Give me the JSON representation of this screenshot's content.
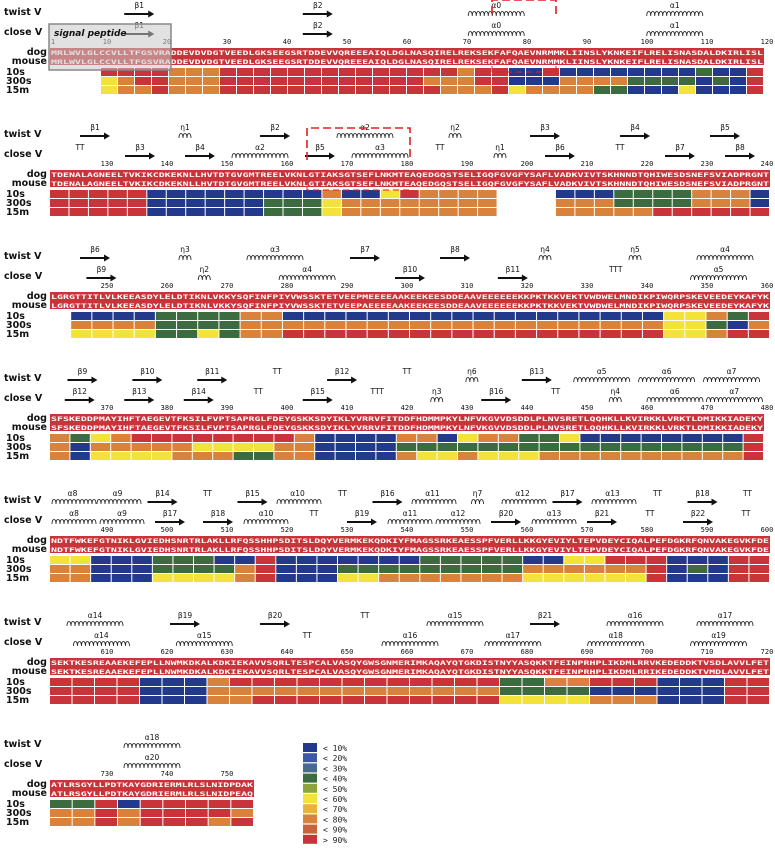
{
  "labels": {
    "twist": "twist V",
    "close": "close V",
    "dog": "dog",
    "mouse": "mouse",
    "t10s": "10s",
    "t300s": "300s",
    "t15m": "15m",
    "signal_peptide": "signal peptide"
  },
  "blocks": [
    {
      "start": 1,
      "numbers": [
        "1",
        "10",
        "20",
        "30",
        "40",
        "50",
        "60",
        "70",
        "80",
        "90",
        "100",
        "110",
        "120"
      ],
      "dog": "MRLWVLGLCCVLLTFGSVRADDEVDVDGTVEEDLGKSEEGSRTDDEVVQREEEAIQLDGLNASQIRELREKSEKFAFQAEVNRMMKLIINSLYKNKEIFLRELISNASDALDKIRLISL",
      "mouse": "MRLWVLGLCCVLLTFGSVRADDEVDVDGTVEEDLGKSEEGSRTDDEVVQREEEAIQLDGLNASQIRELREKSEKFAFQAEVNRMMKLIINSLYKNKEIFLRELISNASDALDKIRLISL",
      "twist_ss": [
        "β1",
        "β2",
        "α0",
        "α1"
      ],
      "close_ss": [
        "β1",
        "β2",
        "α0",
        "α1"
      ],
      "bars": {
        "10s": [
          "C",
          "C",
          "C",
          "R",
          "R",
          "R",
          "R",
          "O",
          "O",
          "O",
          "R",
          "R",
          "R",
          "R",
          "R",
          "R",
          "R",
          "R",
          "R",
          "R",
          "R",
          "R",
          "R",
          "R",
          "O",
          "R",
          "R",
          "B",
          "B",
          "R",
          "B",
          "B",
          "B",
          "B",
          "B",
          "B",
          "B",
          "B",
          "G",
          "B",
          "B",
          "R"
        ],
        "300s": [
          "C",
          "C",
          "C",
          "Y",
          "O",
          "R",
          "R",
          "O",
          "O",
          "O",
          "R",
          "R",
          "R",
          "R",
          "R",
          "R",
          "R",
          "R",
          "R",
          "R",
          "R",
          "R",
          "O",
          "O",
          "O",
          "R",
          "R",
          "B",
          "B",
          "B",
          "O",
          "O",
          "O",
          "O",
          "G",
          "G",
          "G",
          "G",
          "B",
          "G",
          "B",
          "R"
        ],
        "15m": [
          "C",
          "C",
          "C",
          "Y",
          "O",
          "O",
          "R",
          "O",
          "O",
          "O",
          "R",
          "R",
          "R",
          "R",
          "R",
          "R",
          "R",
          "R",
          "R",
          "R",
          "R",
          "R",
          "R",
          "O",
          "O",
          "O",
          "R",
          "Y",
          "O",
          "O",
          "O",
          "O",
          "G",
          "G",
          "B",
          "B",
          "B",
          "Y",
          "B",
          "B",
          "B",
          "R"
        ]
      }
    },
    {
      "start": 121,
      "numbers": [
        "130",
        "140",
        "150",
        "160",
        "170",
        "180",
        "190",
        "200",
        "210",
        "220",
        "230",
        "240"
      ],
      "dog": "TDENALAGNEELTVKIKCDKEKNLLHVTDTGVGMTREELVKNLGTIAKSGTSEFLNKMTEAQEDGQSTSELIGQFGVGFYSAFLVADKVIVTSKHNNDTQHIWESDSNEFSVIADPRGNT",
      "mouse": "TDENALAGNEELTVKIKCDKEKNLLHVTDTGVGMTREELVKNLGTIAKSGTSEFLNKMTEAQEDGQSTSELIGQFGVGFYSAFLVADKVIVTSKHNNDTQHIWESDSNEFSVIADPRGNT",
      "twist_ss": [
        "β1",
        "η1",
        "β2",
        "α2",
        "η2",
        "β3",
        "β4",
        "β5"
      ],
      "close_ss": [
        "TT",
        "β3",
        "β4",
        "α2",
        "β5",
        "α3",
        "TT",
        "η1",
        "β6",
        "TT",
        "β7",
        "β8"
      ],
      "bars": {
        "10s": [
          "R",
          "R",
          "R",
          "R",
          "R",
          "B",
          "B",
          "B",
          "B",
          "B",
          "B",
          "B",
          "B",
          "B",
          "O",
          "B",
          "B",
          "Y",
          "R",
          "O",
          "O",
          "O",
          "O",
          "C",
          "C",
          "C",
          "B",
          "B",
          "B",
          "G",
          "G",
          "G",
          "G",
          "O",
          "O",
          "O",
          "B"
        ],
        "300s": [
          "R",
          "R",
          "R",
          "R",
          "R",
          "B",
          "B",
          "B",
          "B",
          "B",
          "B",
          "G",
          "G",
          "G",
          "Y",
          "O",
          "O",
          "O",
          "O",
          "O",
          "O",
          "O",
          "O",
          "C",
          "C",
          "C",
          "O",
          "O",
          "O",
          "G",
          "G",
          "G",
          "G",
          "O",
          "O",
          "O",
          "B"
        ],
        "15m": [
          "R",
          "R",
          "R",
          "R",
          "R",
          "B",
          "B",
          "B",
          "B",
          "B",
          "B",
          "G",
          "G",
          "G",
          "Y",
          "O",
          "O",
          "O",
          "O",
          "O",
          "O",
          "O",
          "O",
          "C",
          "C",
          "C",
          "O",
          "O",
          "O",
          "O",
          "O",
          "R",
          "R",
          "R",
          "R",
          "R",
          "R"
        ]
      }
    },
    {
      "start": 241,
      "numbers": [
        "250",
        "260",
        "270",
        "280",
        "290",
        "300",
        "310",
        "320",
        "330",
        "340",
        "350",
        "360"
      ],
      "dog": "LGRGTTITLVLKEEASDYLELDTIKNLVKKYSQFINFPIYVWSSKTETVEEPMEEEEAAKEEKEESDDEAAVEEEEEEKKPKTKKVEKTVWDWELMNDIKPIWQRPSKEVEEDEYKAFYK",
      "mouse": "LGRGTTITLVLKEEASDYLELDTIKNLVKKYSQFINFPIYVWSSKTETVEEPAEEEEAAKEEKEESDDEAAVEEEEEEKKPKTKKVEKTVWDWELMNDIKPIWQRPSKEVEEDEYKAFYK",
      "twist_ss": [
        "β6",
        "η3",
        "α3",
        "β7",
        "β8",
        "η4",
        "η5",
        "α4"
      ],
      "close_ss": [
        "β9",
        "η2",
        "α4",
        "β10",
        "β11",
        "TTT",
        "α5"
      ],
      "bars": {
        "10s": [
          "C",
          "B",
          "B",
          "B",
          "B",
          "G",
          "G",
          "G",
          "G",
          "O",
          "O",
          "B",
          "B",
          "B",
          "B",
          "B",
          "B",
          "B",
          "B",
          "B",
          "B",
          "B",
          "B",
          "B",
          "B",
          "B",
          "B",
          "B",
          "B",
          "Y",
          "Y",
          "O",
          "G",
          "R"
        ],
        "300s": [
          "C",
          "O",
          "O",
          "O",
          "O",
          "G",
          "G",
          "G",
          "G",
          "O",
          "O",
          "O",
          "O",
          "O",
          "O",
          "O",
          "O",
          "O",
          "O",
          "O",
          "O",
          "O",
          "O",
          "O",
          "O",
          "O",
          "O",
          "O",
          "O",
          "Y",
          "Y",
          "G",
          "B",
          "O"
        ],
        "15m": [
          "C",
          "Y",
          "Y",
          "Y",
          "Y",
          "G",
          "G",
          "Y",
          "G",
          "O",
          "O",
          "R",
          "R",
          "R",
          "R",
          "R",
          "R",
          "R",
          "R",
          "R",
          "R",
          "R",
          "R",
          "R",
          "R",
          "R",
          "R",
          "R",
          "R",
          "Y",
          "Y",
          "O",
          "R",
          "R"
        ]
      }
    },
    {
      "start": 361,
      "numbers": [
        "370",
        "380",
        "390",
        "400",
        "410",
        "420",
        "430",
        "440",
        "450",
        "460",
        "470",
        "480"
      ],
      "dog": "SFSKEDDPMAYIHFTAEGEVTFKSILFVPTSAPRGLFDEYGSKKSDYIKLYVRRVFITDDFHDMMPKYLNFVKGVVDSDDLPLNVSRETLQQHKLLKVIRKKLVRKTLDMIKKIADEKY",
      "mouse": "SFSKEDDPMAYIHFTAEGEVTFKSILFVPTSAPRGLFDEYGSKKSDYIKLYVRRVFITDDFHDMMPKYLNFVKGVVDSDDLPLNVSRETLQQHKLLKVIRKKLVRKTLDMIKKIADEKY",
      "twist_ss": [
        "β9",
        "β10",
        "β11",
        "TT",
        "β12",
        "TT",
        "η6",
        "β13",
        "α5",
        "α6",
        "α7"
      ],
      "close_ss": [
        "β12",
        "β13",
        "β14",
        "TT",
        "β15",
        "TTT",
        "η3",
        "β16",
        "TT",
        "η4",
        "α6",
        "α7"
      ],
      "bars": {
        "10s": [
          "O",
          "G",
          "Y",
          "O",
          "R",
          "R",
          "R",
          "R",
          "R",
          "R",
          "R",
          "R",
          "O",
          "B",
          "B",
          "B",
          "B",
          "O",
          "O",
          "B",
          "Y",
          "O",
          "O",
          "G",
          "G",
          "Y",
          "B",
          "B",
          "B",
          "B",
          "B",
          "B",
          "B",
          "B",
          "R"
        ],
        "300s": [
          "O",
          "B",
          "O",
          "O",
          "O",
          "O",
          "O",
          "Y",
          "Y",
          "Y",
          "Y",
          "O",
          "O",
          "B",
          "B",
          "B",
          "B",
          "G",
          "G",
          "G",
          "G",
          "G",
          "G",
          "G",
          "G",
          "G",
          "G",
          "G",
          "G",
          "G",
          "G",
          "G",
          "G",
          "G",
          "R"
        ],
        "15m": [
          "O",
          "B",
          "Y",
          "Y",
          "Y",
          "Y",
          "O",
          "O",
          "O",
          "G",
          "G",
          "O",
          "O",
          "B",
          "B",
          "B",
          "B",
          "O",
          "Y",
          "Y",
          "O",
          "Y",
          "Y",
          "Y",
          "O",
          "O",
          "O",
          "O",
          "O",
          "O",
          "O",
          "O",
          "O",
          "O",
          "R"
        ]
      }
    },
    {
      "start": 481,
      "numbers": [
        "490",
        "500",
        "510",
        "520",
        "530",
        "540",
        "550",
        "560",
        "570",
        "580",
        "590",
        "600"
      ],
      "dog": "NDTFWKEFGTNIKLGVIEDHSNRTRLAKLLRFQSSHHPSDITSLDQYVERMKEKQDKIYFMAGSSRKEAESSPFVERLLKKGYEVIYLTEPVDEYCIQALPEFDGKRFQNVAKEGVKFDE",
      "mouse": "NDTFWKEFGTNIKLGVIEDHSNRTRLAKLLRFQSSHHPSDITSLDQYVERMKEKQDKIYFMAGSSRKEAESSPFVERLLKKGYEVIYLTEPVDEYCIQALPEFDGKRFQNVAKEGVKFDE",
      "twist_ss": [
        "α8",
        "α9",
        "β14",
        "TT",
        "β15",
        "α10",
        "TT",
        "β16",
        "α11",
        "η7",
        "α12",
        "β17",
        "α13",
        "TT",
        "β18",
        "TT"
      ],
      "close_ss": [
        "α8",
        "α9",
        "β17",
        "β18",
        "α10",
        "TT",
        "β19",
        "α11",
        "α12",
        "β20",
        "α13",
        "β21",
        "TT",
        "β22",
        "TT"
      ],
      "bars": {
        "10s": [
          "Y",
          "Y",
          "B",
          "B",
          "B",
          "G",
          "G",
          "G",
          "B",
          "B",
          "R",
          "B",
          "B",
          "B",
          "B",
          "B",
          "B",
          "B",
          "G",
          "G",
          "G",
          "G",
          "G",
          "B",
          "B",
          "Y",
          "Y",
          "R",
          "R",
          "R",
          "B",
          "B",
          "B",
          "R",
          "R"
        ],
        "300s": [
          "O",
          "O",
          "B",
          "B",
          "B",
          "G",
          "G",
          "G",
          "G",
          "O",
          "R",
          "B",
          "B",
          "B",
          "G",
          "G",
          "G",
          "G",
          "G",
          "G",
          "G",
          "G",
          "G",
          "O",
          "O",
          "O",
          "O",
          "O",
          "O",
          "R",
          "B",
          "G",
          "B",
          "R",
          "R"
        ],
        "15m": [
          "O",
          "O",
          "B",
          "B",
          "B",
          "Y",
          "Y",
          "Y",
          "Y",
          "O",
          "R",
          "B",
          "B",
          "B",
          "Y",
          "Y",
          "O",
          "O",
          "O",
          "O",
          "O",
          "O",
          "O",
          "Y",
          "Y",
          "Y",
          "Y",
          "Y",
          "Y",
          "R",
          "B",
          "B",
          "B",
          "R",
          "R"
        ]
      }
    },
    {
      "start": 601,
      "numbers": [
        "610",
        "620",
        "630",
        "640",
        "650",
        "660",
        "670",
        "680",
        "690",
        "700",
        "710",
        "720"
      ],
      "dog": "SEKTKESREAAEKEFEPLLNWMKDKALKDKIEKAVVSQRLTESPCALVASQYGWSGNMERIMKAQAYQTGKDISTNYYASQKKTFEINPRHPLIKDMLRRVKEDEDDKTVSDLAVVLFET",
      "mouse": "SEKTKESREAAEKEFEPLLNWMKDKALKDKIEKAVVSQRLTESPCALVASQYGWSGNMERIMKAQAYQTGKDISTNYYASQKKTFEINPRHPLIKDMLRRIKEDEDDKTVMDLAVVLFET",
      "twist_ss": [
        "α14",
        "β19",
        "β20",
        "TT",
        "α15",
        "β21",
        "α16",
        "α17"
      ],
      "close_ss": [
        "α14",
        "α15",
        "TT",
        "α16",
        "α17",
        "α18",
        "α19"
      ],
      "bars": {
        "10s": [
          "R",
          "R",
          "R",
          "R",
          "B",
          "B",
          "B",
          "O",
          "R",
          "R",
          "R",
          "R",
          "R",
          "R",
          "R",
          "R",
          "R",
          "R",
          "R",
          "R",
          "G",
          "G",
          "O",
          "O",
          "R",
          "R",
          "R",
          "B",
          "B",
          "B",
          "R",
          "R"
        ],
        "300s": [
          "R",
          "R",
          "R",
          "R",
          "B",
          "B",
          "B",
          "O",
          "O",
          "O",
          "O",
          "O",
          "O",
          "O",
          "O",
          "O",
          "O",
          "O",
          "O",
          "O",
          "G",
          "G",
          "G",
          "G",
          "B",
          "B",
          "B",
          "B",
          "B",
          "B",
          "R",
          "R"
        ],
        "15m": [
          "R",
          "R",
          "R",
          "R",
          "B",
          "B",
          "B",
          "O",
          "O",
          "R",
          "R",
          "R",
          "R",
          "R",
          "R",
          "R",
          "R",
          "R",
          "R",
          "R",
          "Y",
          "Y",
          "Y",
          "Y",
          "O",
          "O",
          "O",
          "B",
          "B",
          "B",
          "R",
          "R"
        ]
      }
    },
    {
      "start": 721,
      "numbers": [
        "730",
        "740",
        "750"
      ],
      "dog": "ATLRSGYLLPDTKAYGDRIERMLRLSLNIDPDAK",
      "mouse": "ATLRSGYLLPDTKAYGDRIERMLRLSLNIDPEAQ",
      "twist_ss": [
        "α18"
      ],
      "close_ss": [
        "α20"
      ],
      "bars": {
        "10s": [
          "G",
          "G",
          "R",
          "B",
          "R",
          "R",
          "R",
          "R",
          "R"
        ],
        "300s": [
          "O",
          "O",
          "R",
          "O",
          "R",
          "R",
          "R",
          "R",
          "O"
        ],
        "15m": [
          "O",
          "O",
          "R",
          "O",
          "R",
          "R",
          "R",
          "O",
          "R"
        ]
      }
    }
  ],
  "legend": [
    {
      "label": "< 10%",
      "color": "#233a8c"
    },
    {
      "label": "< 20%",
      "color": "#3e58a8"
    },
    {
      "label": "< 30%",
      "color": "#466b8c"
    },
    {
      "label": "< 40%",
      "color": "#3b6b3e"
    },
    {
      "label": "< 50%",
      "color": "#8ea33b"
    },
    {
      "label": "< 60%",
      "color": "#f2e23a"
    },
    {
      "label": "< 70%",
      "color": "#e7b33a"
    },
    {
      "label": "< 80%",
      "color": "#d9823b"
    },
    {
      "label": "< 90%",
      "color": "#c8643c"
    },
    {
      "label": "> 90%",
      "color": "#c8343a"
    }
  ],
  "palette": {
    "B": "#233a8c",
    "b": "#3e58a8",
    "T": "#466b8c",
    "G": "#3b6b3e",
    "g": "#8ea33b",
    "Y": "#f2e23a",
    "y": "#e7b33a",
    "O": "#d9823b",
    "o": "#c8643c",
    "R": "#c8343a",
    "C": "#ffffff"
  },
  "colors": {
    "seq_bg": "#c8343a",
    "highlight_box": "#e02020"
  }
}
